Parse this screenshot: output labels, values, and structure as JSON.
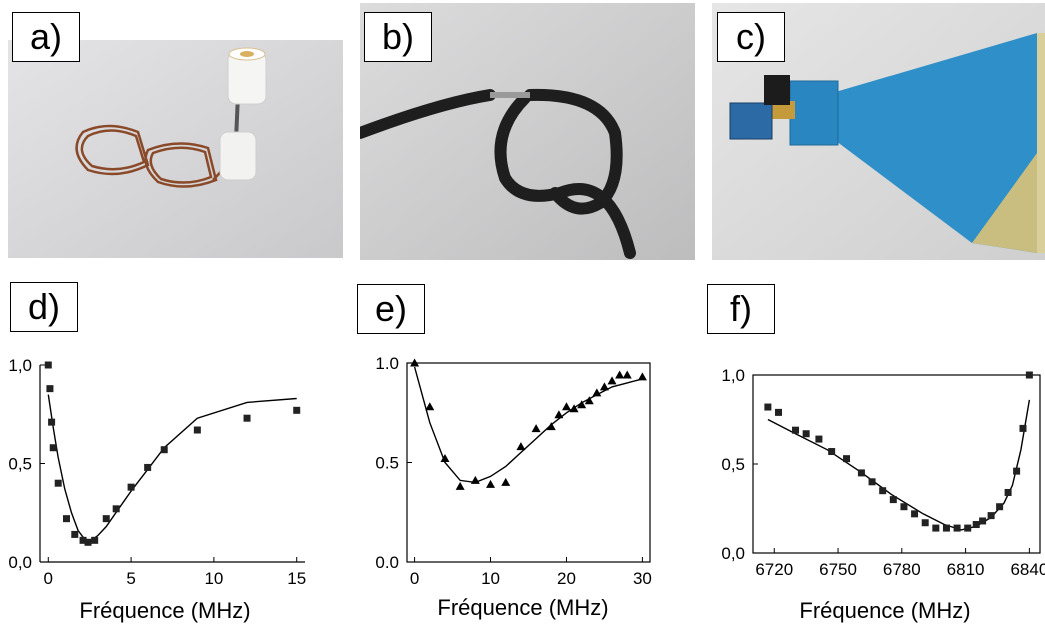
{
  "panels": {
    "a": {
      "label": "a)"
    },
    "b": {
      "label": "b)"
    },
    "c": {
      "label": "c)"
    },
    "d": {
      "label": "d)"
    },
    "e": {
      "label": "e)"
    },
    "f": {
      "label": "f)"
    }
  },
  "chart_data": [
    {
      "panel": "d",
      "type": "scatter",
      "marker": "square",
      "xlabel": "Fréquence (MHz)",
      "ylabel": "",
      "xlim": [
        -0.5,
        15.5
      ],
      "ylim": [
        0,
        1.0
      ],
      "xticks": [
        0,
        5,
        10,
        15
      ],
      "xtick_labels": [
        "0",
        "5",
        "10",
        "15"
      ],
      "yticks": [
        0,
        0.5,
        1.0
      ],
      "ytick_labels": [
        "0,0",
        "0,5",
        "1,0"
      ],
      "points": [
        [
          0,
          1.0
        ],
        [
          0.1,
          0.88
        ],
        [
          0.2,
          0.71
        ],
        [
          0.3,
          0.58
        ],
        [
          0.6,
          0.4
        ],
        [
          1.1,
          0.22
        ],
        [
          1.6,
          0.14
        ],
        [
          2.1,
          0.11
        ],
        [
          2.4,
          0.1
        ],
        [
          2.8,
          0.11
        ],
        [
          3.5,
          0.22
        ],
        [
          4.1,
          0.27
        ],
        [
          5.0,
          0.38
        ],
        [
          6.0,
          0.48
        ],
        [
          7.0,
          0.57
        ],
        [
          9.0,
          0.67
        ],
        [
          12.0,
          0.73
        ],
        [
          15.0,
          0.77
        ]
      ],
      "fit": [
        [
          0,
          0.85
        ],
        [
          0.3,
          0.68
        ],
        [
          0.6,
          0.53
        ],
        [
          1.0,
          0.37
        ],
        [
          1.4,
          0.25
        ],
        [
          1.8,
          0.16
        ],
        [
          2.2,
          0.115
        ],
        [
          2.6,
          0.11
        ],
        [
          3.0,
          0.135
        ],
        [
          3.5,
          0.18
        ],
        [
          4.0,
          0.24
        ],
        [
          5.0,
          0.36
        ],
        [
          6.0,
          0.47
        ],
        [
          7.0,
          0.58
        ],
        [
          9.0,
          0.73
        ],
        [
          12.0,
          0.81
        ],
        [
          15.0,
          0.83
        ]
      ]
    },
    {
      "panel": "e",
      "type": "scatter",
      "marker": "triangle",
      "xlabel": "Fréquence (MHz)",
      "ylabel": "",
      "xlim": [
        -1,
        31
      ],
      "ylim": [
        0,
        1.0
      ],
      "xticks": [
        0,
        10,
        20,
        30
      ],
      "xtick_labels": [
        "0",
        "10",
        "20",
        "30"
      ],
      "yticks": [
        0,
        0.5,
        1.0
      ],
      "ytick_labels": [
        "0.0",
        "0.5",
        "1.0"
      ],
      "points": [
        [
          0,
          1.0
        ],
        [
          2,
          0.78
        ],
        [
          4,
          0.52
        ],
        [
          6,
          0.38
        ],
        [
          8,
          0.41
        ],
        [
          10,
          0.39
        ],
        [
          12,
          0.4
        ],
        [
          14,
          0.58
        ],
        [
          16,
          0.67
        ],
        [
          18,
          0.68
        ],
        [
          19,
          0.74
        ],
        [
          20,
          0.78
        ],
        [
          21,
          0.77
        ],
        [
          22,
          0.79
        ],
        [
          23,
          0.81
        ],
        [
          24,
          0.85
        ],
        [
          25,
          0.88
        ],
        [
          26,
          0.91
        ],
        [
          27,
          0.94
        ],
        [
          28,
          0.94
        ],
        [
          30,
          0.93
        ]
      ],
      "fit": [
        [
          0,
          0.98
        ],
        [
          2,
          0.7
        ],
        [
          4,
          0.5
        ],
        [
          6,
          0.41
        ],
        [
          8,
          0.4
        ],
        [
          10,
          0.43
        ],
        [
          12,
          0.48
        ],
        [
          14,
          0.55
        ],
        [
          16,
          0.62
        ],
        [
          18,
          0.69
        ],
        [
          20,
          0.75
        ],
        [
          22,
          0.8
        ],
        [
          24,
          0.84
        ],
        [
          26,
          0.88
        ],
        [
          28,
          0.9
        ],
        [
          30,
          0.92
        ]
      ]
    },
    {
      "panel": "f",
      "type": "scatter",
      "marker": "square",
      "xlabel": "Fréquence (MHz)",
      "ylabel": "",
      "xlim": [
        6710,
        6845
      ],
      "ylim": [
        0,
        1.0
      ],
      "xticks": [
        6720,
        6750,
        6780,
        6810,
        6840
      ],
      "xtick_labels": [
        "6720",
        "6750",
        "6780",
        "6810",
        "6840"
      ],
      "yticks": [
        0,
        0.5,
        1.0
      ],
      "ytick_labels": [
        "0,0",
        "0,5",
        "1,0"
      ],
      "points": [
        [
          6717,
          0.82
        ],
        [
          6722,
          0.79
        ],
        [
          6730,
          0.69
        ],
        [
          6735,
          0.67
        ],
        [
          6741,
          0.64
        ],
        [
          6747,
          0.57
        ],
        [
          6754,
          0.53
        ],
        [
          6761,
          0.45
        ],
        [
          6766,
          0.4
        ],
        [
          6771,
          0.35
        ],
        [
          6776,
          0.3
        ],
        [
          6781,
          0.26
        ],
        [
          6786,
          0.22
        ],
        [
          6791,
          0.17
        ],
        [
          6796,
          0.14
        ],
        [
          6801,
          0.14
        ],
        [
          6806,
          0.14
        ],
        [
          6811,
          0.14
        ],
        [
          6815,
          0.16
        ],
        [
          6818,
          0.18
        ],
        [
          6822,
          0.21
        ],
        [
          6826,
          0.26
        ],
        [
          6830,
          0.34
        ],
        [
          6834,
          0.46
        ],
        [
          6837,
          0.7
        ],
        [
          6840,
          1.0
        ]
      ],
      "fit": [
        [
          6717,
          0.75
        ],
        [
          6730,
          0.67
        ],
        [
          6745,
          0.58
        ],
        [
          6760,
          0.46
        ],
        [
          6775,
          0.33
        ],
        [
          6790,
          0.22
        ],
        [
          6800,
          0.16
        ],
        [
          6808,
          0.13
        ],
        [
          6815,
          0.15
        ],
        [
          6822,
          0.2
        ],
        [
          6828,
          0.28
        ],
        [
          6832,
          0.38
        ],
        [
          6836,
          0.58
        ],
        [
          6840,
          0.86
        ]
      ]
    }
  ]
}
